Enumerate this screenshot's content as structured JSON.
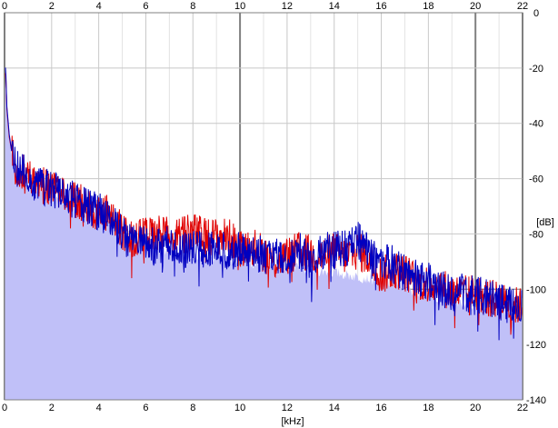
{
  "chart_data": {
    "type": "area",
    "title": "",
    "xlabel": "[kHz]",
    "ylabel": "[dB]",
    "xlim": [
      0,
      22
    ],
    "ylim": [
      -140,
      0
    ],
    "x_ticks": [
      "0",
      "2",
      "4",
      "6",
      "8",
      "10",
      "12",
      "14",
      "16",
      "18",
      "20",
      "22"
    ],
    "y_ticks": [
      "0",
      "-20",
      "-40",
      "-60",
      "-80",
      "-100",
      "-120",
      "-140"
    ],
    "grid": true,
    "colors": {
      "background": "#ffffff",
      "grid_minor": "#c8c8c8",
      "grid_major": "#808080",
      "fill": "#c0c0f8",
      "series_red": "#e00000",
      "series_blue": "#0000c0"
    },
    "series": [
      {
        "color": "#e00000",
        "x": [
          0.05,
          0.1,
          0.2,
          0.3,
          0.5,
          0.7,
          1.0,
          1.5,
          2.0,
          2.5,
          3.0,
          3.5,
          4.0,
          4.5,
          5.0,
          5.5,
          6.0,
          6.5,
          7.0,
          7.5,
          8.0,
          8.5,
          9.0,
          9.5,
          10.0,
          10.5,
          11.0,
          11.5,
          12.0,
          12.5,
          13.0,
          13.5,
          14.0,
          14.5,
          15.0,
          15.5,
          16.0,
          16.5,
          17.0,
          17.5,
          18.0,
          18.5,
          19.0,
          19.5,
          20.0,
          20.5,
          21.0,
          21.5,
          22.0
        ],
        "y": [
          -22,
          -35,
          -45,
          -50,
          -55,
          -57,
          -60,
          -62,
          -64,
          -66,
          -68,
          -70,
          -72,
          -73,
          -79,
          -82,
          -81,
          -80,
          -81,
          -81,
          -79,
          -81,
          -81,
          -81,
          -85,
          -84,
          -87,
          -90,
          -88,
          -86,
          -87,
          -88,
          -86,
          -88,
          -86,
          -89,
          -95,
          -93,
          -94,
          -97,
          -98,
          -99,
          -101,
          -102,
          -101,
          -103,
          -104,
          -106,
          -106
        ]
      },
      {
        "color": "#0000c0",
        "x": [
          0.05,
          0.1,
          0.2,
          0.3,
          0.5,
          0.7,
          1.0,
          1.5,
          2.0,
          2.5,
          3.0,
          3.5,
          4.0,
          4.5,
          5.0,
          5.5,
          6.0,
          6.5,
          7.0,
          7.5,
          8.0,
          8.5,
          9.0,
          9.5,
          10.0,
          10.5,
          11.0,
          11.5,
          12.0,
          12.5,
          13.0,
          13.5,
          14.0,
          14.5,
          15.0,
          15.5,
          16.0,
          16.5,
          17.0,
          17.5,
          18.0,
          18.5,
          19.0,
          19.5,
          20.0,
          20.5,
          21.0,
          21.5,
          22.0
        ],
        "y": [
          -20,
          -34,
          -44,
          -50,
          -55,
          -57,
          -60,
          -62,
          -64,
          -66,
          -68,
          -70,
          -72,
          -74,
          -80,
          -84,
          -84,
          -85,
          -84,
          -86,
          -84,
          -86,
          -85,
          -86,
          -85,
          -86,
          -88,
          -88,
          -90,
          -86,
          -90,
          -86,
          -86,
          -85,
          -82,
          -87,
          -89,
          -91,
          -94,
          -96,
          -97,
          -100,
          -101,
          -101,
          -102,
          -103,
          -104,
          -106,
          -107
        ]
      }
    ],
    "spectral_floor": {
      "x": [
        0.0,
        0.05,
        0.1,
        0.2,
        0.4,
        0.7,
        1.0,
        2.0,
        3.0,
        4.0,
        5.0,
        6.0,
        8.0,
        10.0,
        12.0,
        14.0,
        16.0,
        18.0,
        20.0,
        21.0,
        22.0
      ],
      "y": [
        -22,
        -28,
        -38,
        -46,
        -54,
        -58,
        -62,
        -66,
        -70,
        -74,
        -81,
        -84,
        -88,
        -90,
        -92,
        -94,
        -97,
        -102,
        -106,
        -108,
        -110
      ]
    }
  }
}
